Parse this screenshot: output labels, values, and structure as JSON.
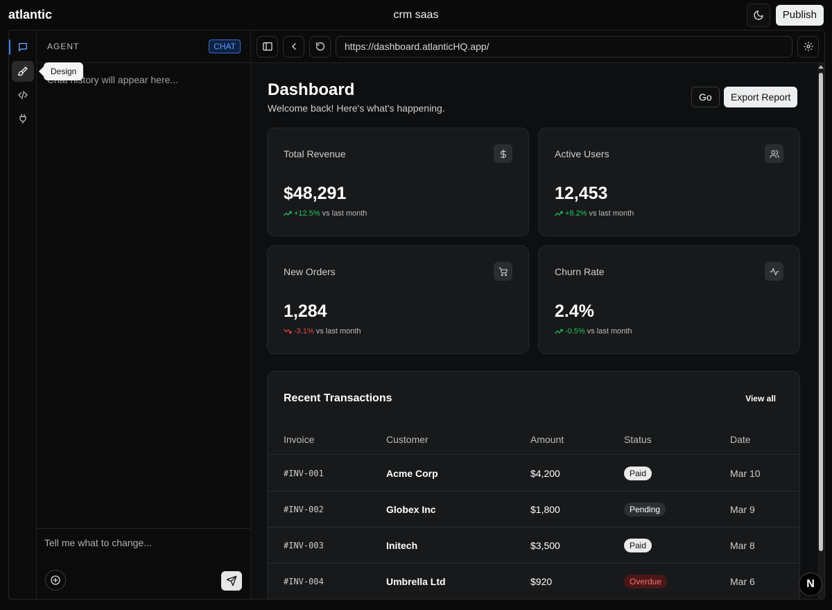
{
  "app": {
    "brand": "atlantic",
    "title": "crm saas",
    "publish_label": "Publish"
  },
  "rail": {
    "tooltip": "Design"
  },
  "agent": {
    "label": "AGENT",
    "badge": "CHAT",
    "history_placeholder": "Chat history will appear here...",
    "composer_placeholder": "Tell me what to change..."
  },
  "browser": {
    "url": "https://dashboard.atlanticHQ.app/"
  },
  "dashboard": {
    "title": "Dashboard",
    "subtitle": "Welcome back! Here's what's happening.",
    "go_label": "Go",
    "export_label": "Export Report",
    "stats": [
      {
        "label": "Total Revenue",
        "value": "$48,291",
        "change": "+12.5%",
        "suffix": "vs last month",
        "icon": "dollar-icon"
      },
      {
        "label": "Active Users",
        "value": "12,453",
        "change": "+8.2%",
        "suffix": "vs last month",
        "icon": "users-icon"
      },
      {
        "label": "New Orders",
        "value": "1,284",
        "change": "-3.1%",
        "suffix": "vs last month",
        "icon": "cart-icon"
      },
      {
        "label": "Churn Rate",
        "value": "2.4%",
        "change": "-0.5%",
        "suffix": "vs last month",
        "icon": "activity-icon"
      }
    ],
    "transactions": {
      "title": "Recent Transactions",
      "view_all": "View all",
      "columns": [
        "Invoice",
        "Customer",
        "Amount",
        "Status",
        "Date"
      ],
      "rows": [
        {
          "invoice": "#INV-001",
          "customer": "Acme Corp",
          "amount": "$4,200",
          "status": "Paid",
          "date": "Mar 10"
        },
        {
          "invoice": "#INV-002",
          "customer": "Globex Inc",
          "amount": "$1,800",
          "status": "Pending",
          "date": "Mar 9"
        },
        {
          "invoice": "#INV-003",
          "customer": "Initech",
          "amount": "$3,500",
          "status": "Paid",
          "date": "Mar 8"
        },
        {
          "invoice": "#INV-004",
          "customer": "Umbrella Ltd",
          "amount": "$920",
          "status": "Overdue",
          "date": "Mar 6"
        }
      ]
    }
  },
  "colors": {
    "accent": "#3b82f6",
    "positive": "#22c55e",
    "negative": "#ef4444"
  },
  "floating_badge": "N"
}
